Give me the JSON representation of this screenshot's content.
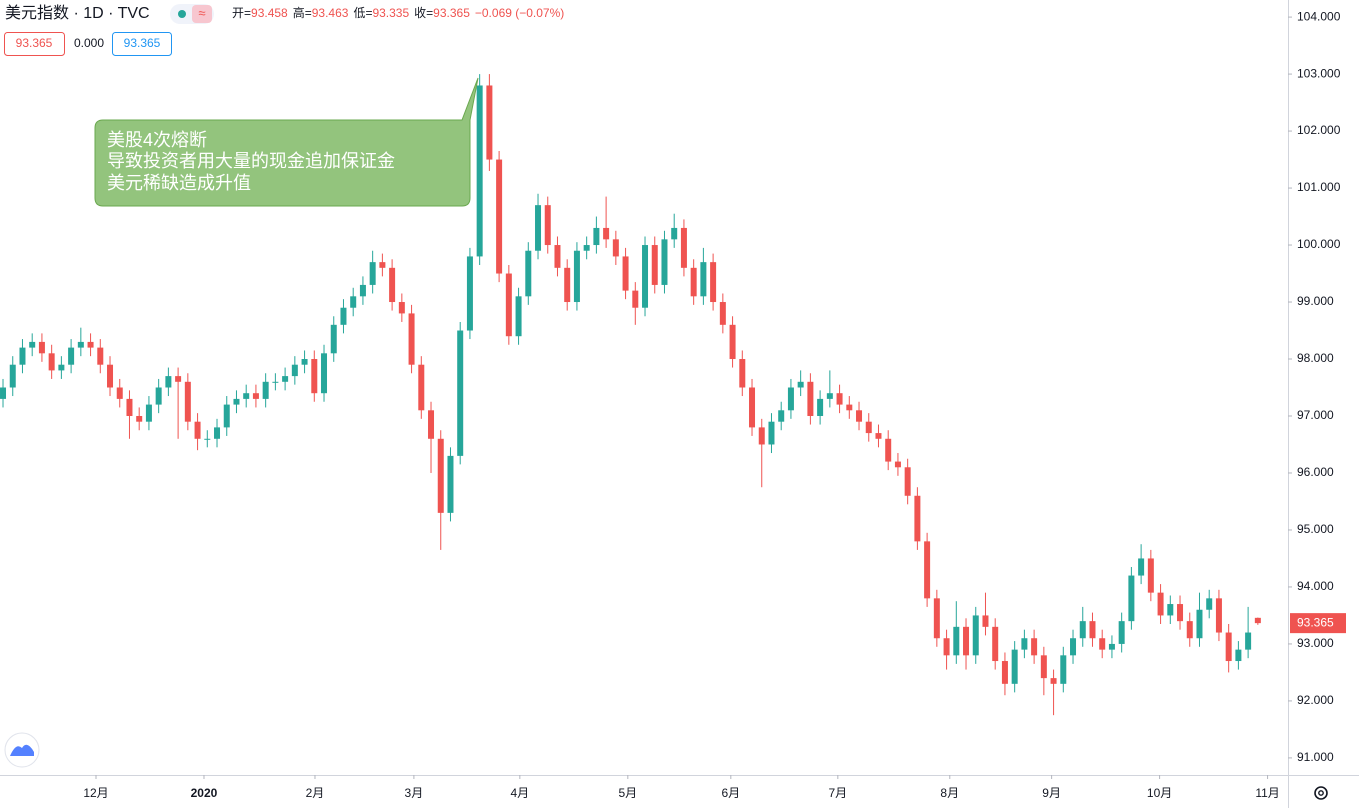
{
  "header": {
    "symbol": "美元指数 · 1D · TVC",
    "ohlc": [
      {
        "k": "开=",
        "v": "93.458"
      },
      {
        "k": "高=",
        "v": "93.463"
      },
      {
        "k": "低=",
        "v": "93.335"
      },
      {
        "k": "收=",
        "v": "93.365"
      }
    ],
    "change": "−0.069 (−0.07%)",
    "indicators": [
      "93.365",
      "0.000",
      "93.365"
    ]
  },
  "chart_data": {
    "type": "candlestick",
    "annotation": [
      "美股4次熔断",
      "导致投资者用大量的现金追加保证金",
      "美元稀缺造成升值"
    ],
    "up_color": "#26a69a",
    "down_color": "#ef5350",
    "xlim": [
      -0.31,
      132.1
    ],
    "xticks": [
      {
        "value": 9.56,
        "label": "12月"
      },
      {
        "value": 20.66,
        "label": "2020"
      },
      {
        "value": 32.07,
        "label": "2月"
      },
      {
        "value": 42.24,
        "label": "3月"
      },
      {
        "value": 53.13,
        "label": "4月"
      },
      {
        "value": 64.23,
        "label": "5月"
      },
      {
        "value": 74.82,
        "label": "6月"
      },
      {
        "value": 85.82,
        "label": "7月"
      },
      {
        "value": 97.33,
        "label": "8月"
      },
      {
        "value": 107.8,
        "label": "9月"
      },
      {
        "value": 118.9,
        "label": "10月"
      },
      {
        "value": 130.0,
        "label": "11月"
      }
    ],
    "ylim": [
      90.7,
      104.3
    ],
    "yticks": [
      {
        "value": 91,
        "label": "91.000"
      },
      {
        "value": 92,
        "label": "92.000"
      },
      {
        "value": 93,
        "label": "93.000"
      },
      {
        "value": 94,
        "label": "94.000"
      },
      {
        "value": 95,
        "label": "95.000"
      },
      {
        "value": 96,
        "label": "96.000"
      },
      {
        "value": 97,
        "label": "97.000"
      },
      {
        "value": 98,
        "label": "98.000"
      },
      {
        "value": 99,
        "label": "99.000"
      },
      {
        "value": 100,
        "label": "100.000"
      },
      {
        "value": 101,
        "label": "101.000"
      },
      {
        "value": 102,
        "label": "102.000"
      },
      {
        "value": 103,
        "label": "103.000"
      },
      {
        "value": 104,
        "label": "104.000"
      }
    ],
    "open": [
      97.3,
      97.5,
      97.9,
      98.2,
      98.3,
      98.1,
      97.8,
      97.9,
      98.2,
      98.3,
      98.2,
      97.9,
      97.5,
      97.3,
      97.0,
      96.9,
      97.2,
      97.5,
      97.7,
      97.6,
      96.9,
      96.6,
      96.6,
      96.8,
      97.2,
      97.3,
      97.4,
      97.3,
      97.6,
      97.6,
      97.7,
      97.9,
      98.0,
      97.4,
      98.1,
      98.6,
      98.9,
      99.1,
      99.3,
      99.7,
      99.6,
      99.0,
      98.8,
      97.9,
      97.1,
      96.6,
      95.3,
      96.3,
      98.5,
      99.8,
      102.8,
      101.5,
      99.5,
      98.4,
      99.1,
      99.9,
      100.7,
      100.0,
      99.6,
      99.0,
      99.9,
      100.0,
      100.3,
      100.1,
      99.8,
      99.2,
      98.9,
      100.0,
      99.3,
      100.1,
      100.3,
      99.6,
      99.1,
      99.7,
      99.0,
      98.6,
      98.0,
      97.5,
      96.8,
      96.5,
      96.9,
      97.1,
      97.5,
      97.6,
      97.0,
      97.3,
      97.4,
      97.2,
      97.1,
      96.9,
      96.7,
      96.6,
      96.2,
      96.1,
      95.6,
      94.8,
      93.8,
      93.1,
      92.8,
      93.3,
      92.8,
      93.5,
      93.3,
      92.7,
      92.3,
      92.9,
      93.1,
      92.8,
      92.4,
      92.3,
      92.8,
      93.1,
      93.4,
      93.1,
      92.9,
      93.0,
      93.4,
      94.2,
      94.5,
      93.9,
      93.5,
      93.7,
      93.4,
      93.1,
      93.6,
      93.8,
      93.2,
      92.7,
      92.9,
      93.458
    ],
    "high": [
      97.65,
      98.05,
      98.35,
      98.45,
      98.45,
      98.25,
      98.05,
      98.35,
      98.55,
      98.45,
      98.35,
      98.05,
      97.65,
      97.45,
      97.15,
      97.35,
      97.65,
      97.85,
      97.85,
      97.75,
      97.05,
      96.75,
      96.95,
      97.35,
      97.45,
      97.55,
      97.55,
      97.75,
      97.75,
      97.85,
      98.05,
      98.15,
      98.15,
      98.25,
      98.75,
      99.05,
      99.25,
      99.45,
      99.9,
      99.85,
      99.75,
      99.15,
      98.95,
      98.05,
      97.25,
      96.75,
      96.45,
      98.65,
      99.95,
      103.0,
      103.0,
      101.65,
      99.65,
      99.25,
      100.05,
      100.9,
      100.85,
      100.15,
      99.75,
      100.05,
      100.15,
      100.5,
      100.85,
      100.25,
      99.95,
      99.35,
      100.15,
      100.15,
      100.25,
      100.55,
      100.45,
      99.75,
      99.95,
      99.85,
      99.15,
      98.75,
      98.15,
      97.65,
      96.95,
      97.05,
      97.25,
      97.65,
      97.8,
      97.75,
      97.45,
      97.8,
      97.55,
      97.35,
      97.25,
      97.05,
      96.85,
      96.75,
      96.35,
      96.25,
      95.75,
      94.95,
      93.95,
      93.25,
      93.75,
      93.45,
      93.65,
      93.9,
      93.45,
      92.85,
      93.05,
      93.25,
      93.25,
      92.95,
      92.55,
      92.95,
      93.25,
      93.65,
      93.55,
      93.25,
      93.15,
      93.55,
      94.35,
      94.75,
      94.65,
      94.05,
      93.85,
      93.85,
      93.55,
      93.9,
      93.95,
      93.95,
      93.35,
      93.05,
      93.65,
      93.463
    ],
    "low": [
      97.15,
      97.35,
      97.75,
      98.05,
      97.95,
      97.65,
      97.65,
      97.75,
      98.05,
      98.05,
      97.75,
      97.35,
      97.15,
      96.6,
      96.75,
      96.75,
      97.05,
      97.35,
      96.6,
      96.75,
      96.4,
      96.45,
      96.45,
      96.65,
      97.05,
      97.15,
      97.15,
      97.15,
      97.45,
      97.45,
      97.55,
      97.75,
      97.25,
      97.25,
      97.95,
      98.45,
      98.75,
      98.95,
      99.15,
      99.45,
      98.85,
      98.65,
      97.75,
      96.95,
      96.0,
      94.65,
      95.15,
      96.15,
      98.35,
      99.65,
      101.3,
      99.35,
      98.25,
      98.25,
      98.95,
      99.75,
      99.85,
      99.45,
      98.85,
      98.85,
      99.75,
      99.85,
      99.95,
      99.65,
      99.05,
      98.6,
      98.75,
      99.15,
      99.15,
      99.95,
      99.45,
      98.95,
      98.95,
      98.85,
      98.45,
      97.85,
      97.35,
      96.65,
      95.75,
      96.35,
      96.75,
      96.95,
      97.35,
      96.85,
      96.85,
      97.15,
      97.05,
      96.95,
      96.75,
      96.55,
      96.45,
      96.05,
      95.95,
      95.45,
      94.65,
      93.65,
      92.95,
      92.55,
      92.65,
      92.55,
      92.65,
      93.15,
      92.55,
      92.1,
      92.15,
      92.75,
      92.65,
      92.1,
      91.75,
      92.15,
      92.65,
      92.95,
      92.95,
      92.75,
      92.75,
      92.85,
      93.25,
      94.05,
      93.75,
      93.35,
      93.35,
      93.25,
      92.95,
      92.95,
      93.45,
      93.05,
      92.5,
      92.55,
      92.75,
      93.335
    ],
    "close": [
      97.5,
      97.9,
      98.2,
      98.3,
      98.1,
      97.8,
      97.9,
      98.2,
      98.3,
      98.2,
      97.9,
      97.5,
      97.3,
      97.0,
      96.9,
      97.2,
      97.5,
      97.7,
      97.6,
      96.9,
      96.6,
      96.6,
      96.8,
      97.2,
      97.3,
      97.4,
      97.3,
      97.6,
      97.6,
      97.7,
      97.9,
      98.0,
      97.4,
      98.1,
      98.6,
      98.9,
      99.1,
      99.3,
      99.7,
      99.6,
      99.0,
      98.8,
      97.9,
      97.1,
      96.6,
      95.3,
      96.3,
      98.5,
      99.8,
      102.8,
      101.5,
      99.5,
      98.4,
      99.1,
      99.9,
      100.7,
      100.0,
      99.6,
      99.0,
      99.9,
      100.0,
      100.3,
      100.1,
      99.8,
      99.2,
      98.9,
      100.0,
      99.3,
      100.1,
      100.3,
      99.6,
      99.1,
      99.7,
      99.0,
      98.6,
      98.0,
      97.5,
      96.8,
      96.5,
      96.9,
      97.1,
      97.5,
      97.6,
      97.0,
      97.3,
      97.4,
      97.2,
      97.1,
      96.9,
      96.7,
      96.6,
      96.2,
      96.1,
      95.6,
      94.8,
      93.8,
      93.1,
      92.8,
      93.3,
      92.8,
      93.5,
      93.3,
      92.7,
      92.3,
      92.9,
      93.1,
      92.8,
      92.4,
      92.3,
      92.8,
      93.1,
      93.4,
      93.1,
      92.9,
      93.0,
      93.4,
      94.2,
      94.5,
      93.9,
      93.5,
      93.7,
      93.4,
      93.1,
      93.6,
      93.8,
      93.2,
      92.7,
      92.9,
      93.2,
      93.365
    ]
  }
}
